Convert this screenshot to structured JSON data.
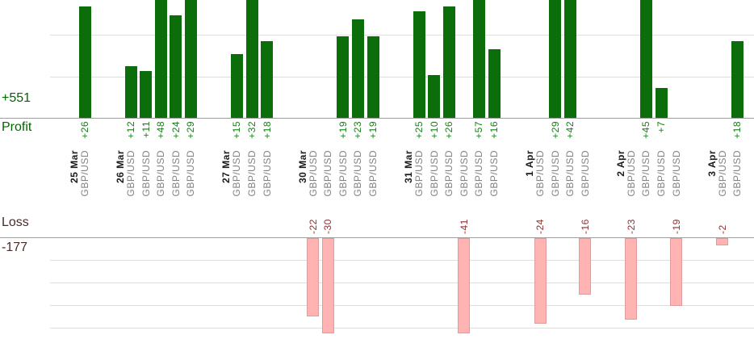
{
  "labels": {
    "profit_caption": "Profit",
    "profit_total": "+551",
    "loss_caption": "Loss",
    "loss_total": "-177"
  },
  "colors": {
    "profit_bar": "#0b6e0b",
    "profit_value_text": "#128012",
    "profit_caption_text": "#006600",
    "loss_bar_fill": "#ffb3b3",
    "loss_bar_border": "#df9c9c",
    "loss_value_text": "#8b3030",
    "loss_caption_text": "#4a2b2b",
    "date_text": "#1a1a1a",
    "symbol_text": "#828282",
    "baseline": "#9e9e9e",
    "gridline": "#dedede",
    "background": "#ffffff"
  },
  "chart_data": {
    "type": "bar",
    "title": "",
    "xlabel": "",
    "ylabel": "",
    "legend_position": "none",
    "sections": {
      "profit": {
        "caption": "Profit",
        "total": 551
      },
      "loss": {
        "caption": "Loss",
        "total": -177
      }
    },
    "groups": [
      {
        "date": "25 Mar",
        "trades": [
          {
            "symbol": "GBP/USD",
            "value": 26
          }
        ]
      },
      {
        "date": "26 Mar",
        "trades": [
          {
            "symbol": "GBP/USD",
            "value": 12
          },
          {
            "symbol": "GBP/USD",
            "value": 11
          },
          {
            "symbol": "GBP/USD",
            "value": 48
          },
          {
            "symbol": "GBP/USD",
            "value": 24
          },
          {
            "symbol": "GBP/USD",
            "value": 29
          }
        ]
      },
      {
        "date": "27 Mar",
        "trades": [
          {
            "symbol": "GBP/USD",
            "value": 15
          },
          {
            "symbol": "GBP/USD",
            "value": 32
          },
          {
            "symbol": "GBP/USD",
            "value": 18
          }
        ]
      },
      {
        "date": "30 Mar",
        "trades": [
          {
            "symbol": "GBP/USD",
            "value": -22
          },
          {
            "symbol": "GBP/USD",
            "value": -30
          },
          {
            "symbol": "GBP/USD",
            "value": 19
          },
          {
            "symbol": "GBP/USD",
            "value": 23
          },
          {
            "symbol": "GBP/USD",
            "value": 19
          }
        ]
      },
      {
        "date": "31 Mar",
        "trades": [
          {
            "symbol": "GBP/USD",
            "value": 25
          },
          {
            "symbol": "GBP/USD",
            "value": 10
          },
          {
            "symbol": "GBP/USD",
            "value": 26
          },
          {
            "symbol": "GBP/USD",
            "value": -41
          },
          {
            "symbol": "GBP/USD",
            "value": 57
          },
          {
            "symbol": "GBP/USD",
            "value": 16
          }
        ]
      },
      {
        "date": "1 Apr",
        "trades": [
          {
            "symbol": "GBP/USD",
            "value": -24
          },
          {
            "symbol": "GBP/USD",
            "value": 29
          },
          {
            "symbol": "GBP/USD",
            "value": 42
          },
          {
            "symbol": "GBP/USD",
            "value": -16
          }
        ]
      },
      {
        "date": "2 Apr",
        "trades": [
          {
            "symbol": "GBP/USD",
            "value": -23
          },
          {
            "symbol": "GBP/USD",
            "value": 45
          },
          {
            "symbol": "GBP/USD",
            "value": 7
          },
          {
            "symbol": "GBP/USD",
            "value": -19
          }
        ]
      },
      {
        "date": "3 Apr",
        "trades": [
          {
            "symbol": "GBP/USD",
            "value": -2
          },
          {
            "symbol": "GBP/USD",
            "value": 18
          }
        ]
      }
    ]
  }
}
